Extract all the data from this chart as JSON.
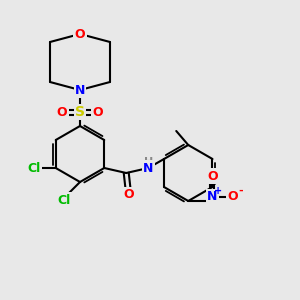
{
  "bg_color": "#e8e8e8",
  "fig_width": 3.0,
  "fig_height": 3.0,
  "dpi": 100,
  "colors": {
    "C": "#000000",
    "O": "#ff0000",
    "N": "#0000ff",
    "Cl": "#00bb00",
    "S": "#cccc00",
    "H": "#888888",
    "bond": "#000000"
  },
  "font_size": 9,
  "bond_width": 1.5
}
